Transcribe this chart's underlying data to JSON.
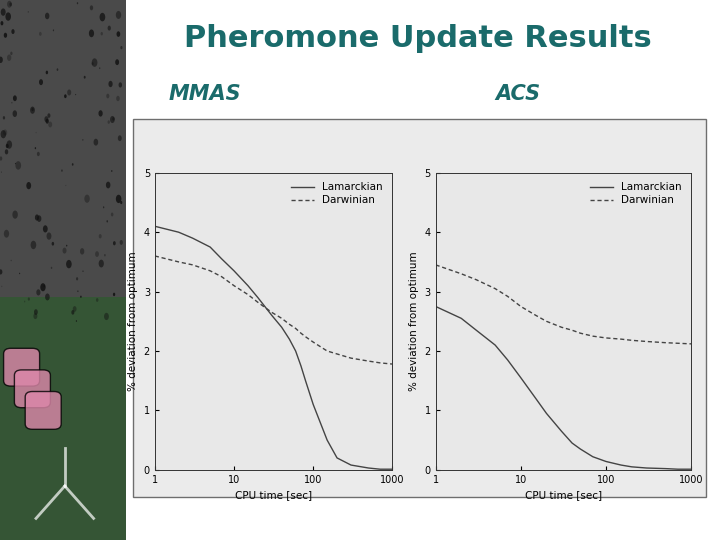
{
  "title": "Pheromone Update Results",
  "title_color": "#1a6b6b",
  "title_fontsize": 22,
  "title_fontweight": "bold",
  "label_mmas": "MMAS",
  "label_acs": "ACS",
  "label_color": "#1a6b6b",
  "label_fontsize": 15,
  "xlabel": "CPU time [sec]",
  "ylabel": "% deviation from optimum",
  "legend_labels": [
    "Lamarckian",
    "Darwinian"
  ],
  "ylim": [
    0,
    5
  ],
  "yticks": [
    0,
    1,
    2,
    3,
    4,
    5
  ],
  "xlim_log": [
    1,
    1000
  ],
  "xticks": [
    1,
    10,
    100,
    1000
  ],
  "chart_bg": "#e8e8e8",
  "slide_bg": "#ffffff",
  "mmas_lamarckian_x": [
    1,
    2,
    3,
    5,
    7,
    10,
    15,
    20,
    30,
    40,
    50,
    60,
    70,
    80,
    100,
    150,
    200,
    300,
    500,
    700,
    1000
  ],
  "mmas_lamarckian_y": [
    4.1,
    4.0,
    3.9,
    3.75,
    3.55,
    3.35,
    3.1,
    2.9,
    2.6,
    2.4,
    2.2,
    2.0,
    1.75,
    1.5,
    1.1,
    0.5,
    0.2,
    0.08,
    0.03,
    0.01,
    0.01
  ],
  "mmas_darwinian_x": [
    1,
    2,
    3,
    5,
    7,
    10,
    15,
    20,
    30,
    40,
    50,
    60,
    70,
    80,
    100,
    150,
    200,
    300,
    500,
    700,
    1000
  ],
  "mmas_darwinian_y": [
    3.6,
    3.5,
    3.45,
    3.35,
    3.25,
    3.1,
    2.95,
    2.82,
    2.65,
    2.55,
    2.45,
    2.38,
    2.3,
    2.24,
    2.15,
    2.0,
    1.95,
    1.88,
    1.83,
    1.8,
    1.78
  ],
  "acs_lamarckian_x": [
    1,
    2,
    3,
    5,
    7,
    10,
    15,
    20,
    30,
    40,
    50,
    70,
    100,
    150,
    200,
    300,
    500,
    700,
    1000
  ],
  "acs_lamarckian_y": [
    2.75,
    2.55,
    2.35,
    2.1,
    1.85,
    1.55,
    1.2,
    0.95,
    0.65,
    0.45,
    0.35,
    0.22,
    0.14,
    0.08,
    0.05,
    0.03,
    0.02,
    0.01,
    0.01
  ],
  "acs_darwinian_x": [
    1,
    2,
    3,
    5,
    7,
    10,
    15,
    20,
    30,
    40,
    50,
    70,
    100,
    150,
    200,
    300,
    500,
    700,
    1000
  ],
  "acs_darwinian_y": [
    3.45,
    3.3,
    3.2,
    3.05,
    2.92,
    2.75,
    2.6,
    2.5,
    2.4,
    2.35,
    2.3,
    2.25,
    2.22,
    2.2,
    2.18,
    2.16,
    2.14,
    2.13,
    2.12
  ],
  "line_color": "#444444",
  "line_width": 1.0,
  "tick_fontsize": 7,
  "label_axis_fontsize": 7.5,
  "legend_fontsize": 7.5
}
